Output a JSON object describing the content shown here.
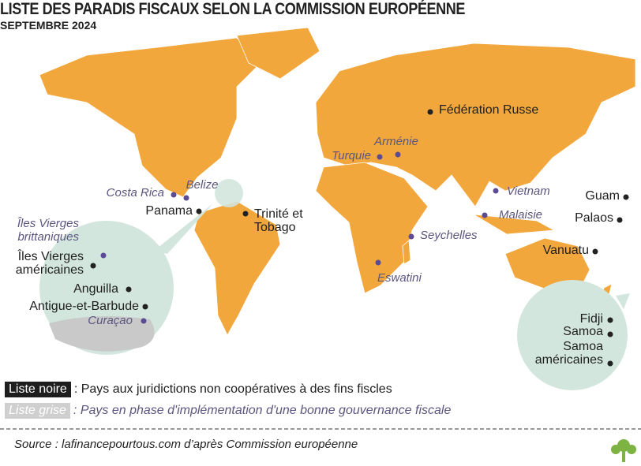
{
  "header": {
    "title": "LISTE DES PARADIS FISCAUX SELON LA COMMISSION EUROPÉENNE",
    "subtitle": "SEPTEMBRE 2024"
  },
  "markers": [
    {
      "label": "Fédération Russe",
      "list": "noire"
    },
    {
      "label": "Arménie",
      "list": "grise"
    },
    {
      "label": "Turquie",
      "list": "grise"
    },
    {
      "label": "Belize",
      "list": "grise"
    },
    {
      "label": "Costa Rica",
      "list": "grise"
    },
    {
      "label": "Panama",
      "list": "noire"
    },
    {
      "label": "Trinité et\nTobago",
      "list": "noire"
    },
    {
      "label": "Vietnam",
      "list": "grise"
    },
    {
      "label": "Malaisie",
      "list": "grise"
    },
    {
      "label": "Guam",
      "list": "noire"
    },
    {
      "label": "Palaos",
      "list": "noire"
    },
    {
      "label": "Seychelles",
      "list": "grise"
    },
    {
      "label": "Eswatini",
      "list": "grise"
    },
    {
      "label": "Vanuatu",
      "list": "noire"
    },
    {
      "label": "Îles Vierges\nbrittaniques",
      "list": "grise"
    },
    {
      "label": "Îles Vierges\naméricaines",
      "list": "noire"
    },
    {
      "label": "Anguilla",
      "list": "noire"
    },
    {
      "label": "Antigue-et-Barbude",
      "list": "noire"
    },
    {
      "label": "Curaçao",
      "list": "grise"
    },
    {
      "label": "Fidji",
      "list": "noire"
    },
    {
      "label": "Samoa",
      "list": "noire"
    },
    {
      "label": "Samoa\naméricaines",
      "list": "noire"
    }
  ],
  "legend": [
    {
      "key": "Liste noire",
      "text": ": Pays aux juridictions non coopératives à des fins fiscles"
    },
    {
      "key": "Liste grise",
      "text": ": Pays en phase d'implémentation d'une bonne gouvernance fiscale"
    }
  ],
  "source": "Source : lafinancepourtous.com d’après Commission européenne"
}
